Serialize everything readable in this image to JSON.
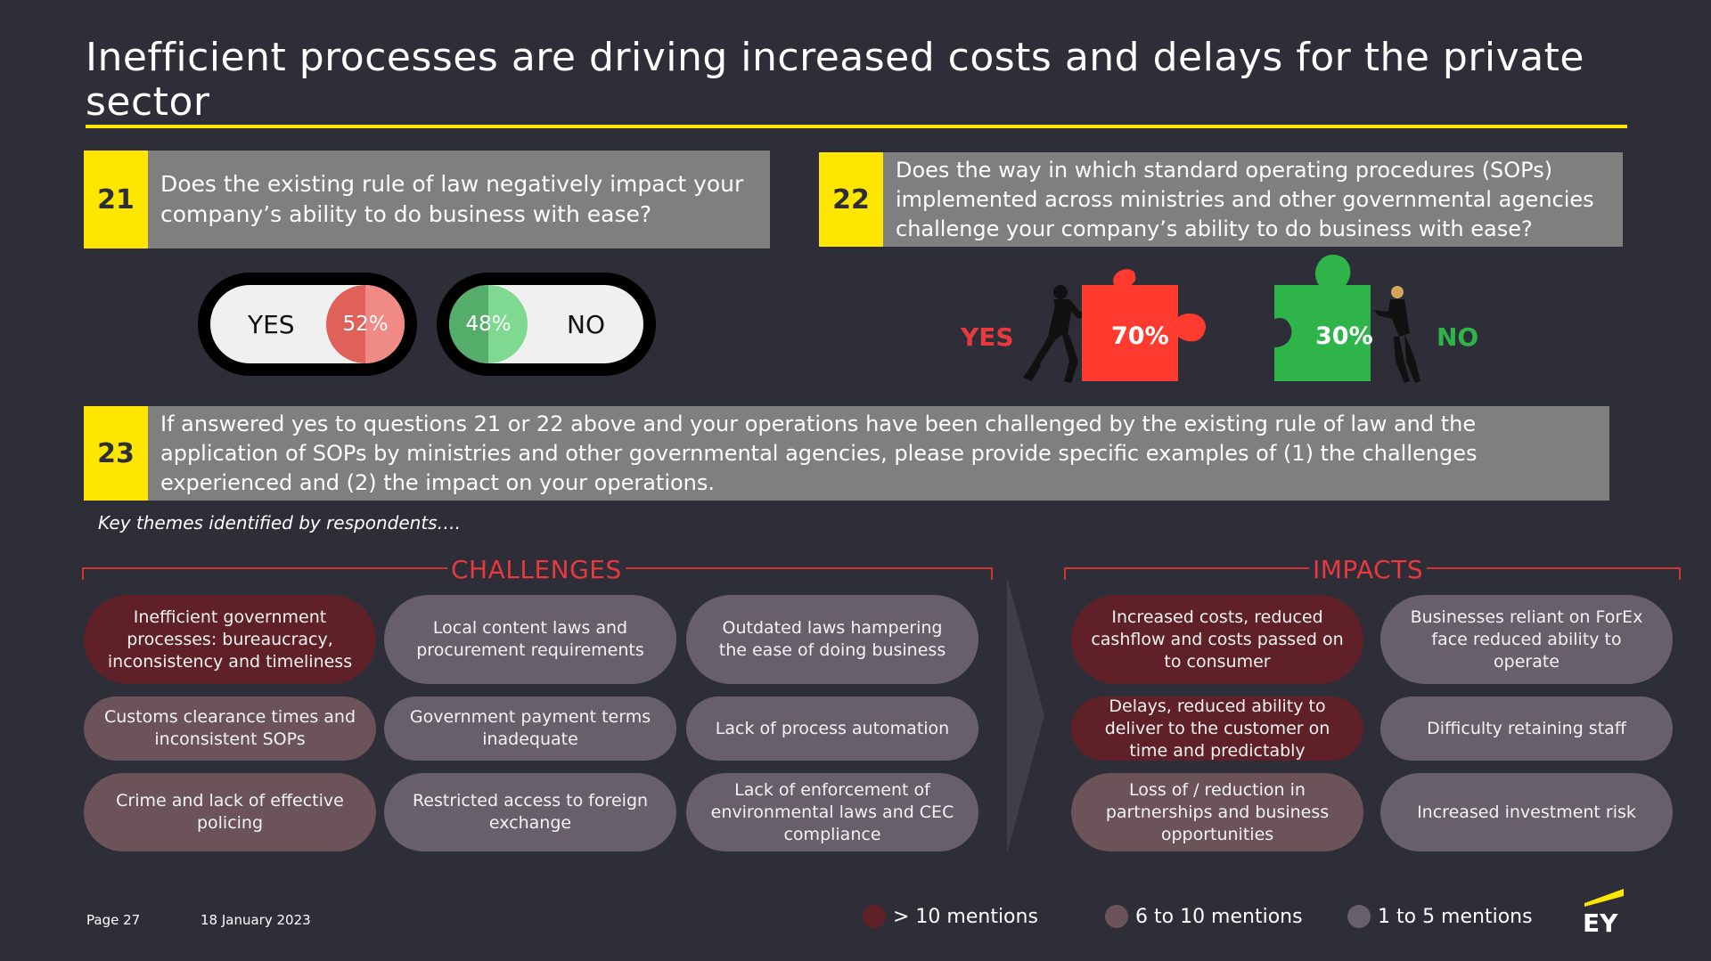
{
  "title": "Inefficient processes are driving increased costs and delays for the private sector",
  "colors": {
    "accent": "#ffe600",
    "background": "#2e2e38",
    "yes_red": "#e8393e",
    "no_green": "#2fb44a"
  },
  "q21": {
    "number": "21",
    "text": "Does the existing rule of law negatively impact your company’s ability to do business with ease?",
    "yes_label": "YES",
    "yes_pct": "52%",
    "no_label": "NO",
    "no_pct": "48%"
  },
  "q22": {
    "number": "22",
    "text": "Does the way in which standard operating procedures (SOPs) implemented across ministries and other governmental agencies challenge your company’s ability to do business with ease?",
    "yes_label": "YES",
    "yes_pct": "70%",
    "no_label": "NO",
    "no_pct": "30%"
  },
  "q23": {
    "number": "23",
    "text": "If answered yes to questions 21 or 22 above and your operations have been challenged by the existing rule of law and the application of SOPs by ministries and other governmental agencies, please provide specific examples of (1) the challenges experienced and (2) the impact on your operations."
  },
  "key_themes_label": "Key themes identified by respondents….",
  "challenges": {
    "title": "CHALLENGES",
    "items": [
      {
        "text": "Inefficient government processes: bureaucracy, inconsistency and timeliness",
        "level": "high"
      },
      {
        "text": "Local content laws and procurement requirements",
        "level": "low"
      },
      {
        "text": "Outdated laws hampering the ease of doing business",
        "level": "low"
      },
      {
        "text": "Customs clearance times and inconsistent SOPs",
        "level": "medium"
      },
      {
        "text": "Government payment terms inadequate",
        "level": "low"
      },
      {
        "text": "Lack of process automation",
        "level": "low"
      },
      {
        "text": "Crime and lack of effective policing",
        "level": "medium"
      },
      {
        "text": "Restricted access to foreign exchange",
        "level": "low"
      },
      {
        "text": "Lack of enforcement of environmental laws and CEC compliance",
        "level": "low"
      }
    ]
  },
  "impacts": {
    "title": "IMPACTS",
    "items": [
      {
        "text": "Increased costs, reduced cashflow  and costs passed on to consumer",
        "level": "high"
      },
      {
        "text": "Businesses reliant on ForEx face reduced ability to operate",
        "level": "low"
      },
      {
        "text": "Delays, reduced ability to deliver to the customer on time and predictably",
        "level": "high"
      },
      {
        "text": "Difficulty retaining staff",
        "level": "low"
      },
      {
        "text": "Loss of / reduction in partnerships and business opportunities",
        "level": "medium"
      },
      {
        "text": "Increased investment risk",
        "level": "low"
      }
    ]
  },
  "legend": {
    "high": "> 10 mentions",
    "medium": "6 to 10 mentions",
    "low": "1 to 5 mentions"
  },
  "footer": {
    "page": "Page 27",
    "date": "18 January 2023",
    "logo": "EY"
  }
}
